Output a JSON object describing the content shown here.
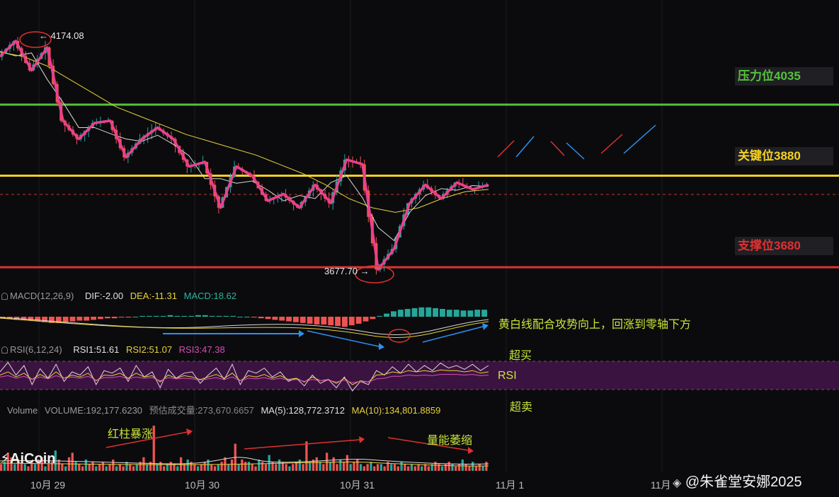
{
  "chart_data": {
    "type": "candlestick",
    "x_ticks": [
      "10月 29",
      "10月 30",
      "10月 31",
      "11月 1",
      "11月"
    ],
    "price_labels": {
      "high": "4174.08",
      "low": "3677.70"
    },
    "levels": [
      {
        "label": "压力位4035",
        "value": 4035,
        "color": "#56c23a"
      },
      {
        "label": "关键位3880",
        "value": 3880,
        "color": "#f5d320"
      },
      {
        "label": "支撑位3680",
        "value": 3680,
        "color": "#e03131"
      }
    ],
    "price_zigzag": [
      4140,
      4174,
      4110,
      4160,
      4000,
      3960,
      3995,
      4000,
      3920,
      3960,
      3985,
      3960,
      3900,
      3910,
      3810,
      3900,
      3880,
      3825,
      3840,
      3810,
      3860,
      3820,
      3915,
      3905,
      3675,
      3720,
      3820,
      3860,
      3830,
      3865,
      3850,
      3860
    ],
    "ma_slow": [
      4150,
      4140,
      4120,
      4090,
      4060,
      4030,
      4010,
      3990,
      3970,
      3955,
      3940,
      3925,
      3905,
      3885,
      3860,
      3830,
      3810,
      3800,
      3810,
      3830,
      3845,
      3850
    ],
    "macd": {
      "header": {
        "name": "MACD(12,26,9)",
        "dif": "DIF:-2.00",
        "dea": "DEA:-11.31",
        "macd": "MACD:18.62"
      },
      "histogram": [
        -2,
        -3,
        -4,
        -4,
        -5,
        -6,
        -7,
        -8,
        -8,
        -7,
        -6,
        -5,
        -5,
        -4,
        -3,
        -2,
        -2,
        -1,
        -1,
        0,
        1,
        1,
        1,
        1,
        2,
        1,
        1,
        1,
        2,
        2,
        1,
        1,
        1,
        1,
        0,
        0,
        -1,
        -2,
        -3,
        -4,
        -5,
        -6,
        -7,
        -8,
        -9,
        -10,
        -10,
        -11,
        -12,
        -13,
        -11,
        -9,
        -6,
        -3,
        1,
        4,
        7,
        9,
        10,
        11,
        12,
        12,
        11,
        10,
        9,
        9,
        8,
        8,
        9,
        9
      ]
    },
    "rsi": {
      "header": {
        "name": "RSI(6,12,24)",
        "rsi1": "RSI1:51.61",
        "rsi2": "RSI2:51.07",
        "rsi3": "RSI3:47.38"
      },
      "label": "RSI",
      "overbought": "超买",
      "oversold": "超卖",
      "rsi6": [
        60,
        75,
        55,
        70,
        40,
        65,
        50,
        72,
        45,
        60,
        55,
        68,
        40,
        62,
        58,
        66,
        45,
        70,
        52,
        60,
        35,
        64,
        50,
        58,
        60,
        42,
        55,
        66,
        48,
        72,
        40,
        62,
        58,
        66,
        52,
        60,
        45,
        50,
        38,
        55,
        42,
        48,
        35,
        52,
        30,
        45,
        40,
        62,
        55,
        68,
        58,
        72,
        60,
        70,
        62,
        74,
        66,
        70,
        64,
        72,
        62,
        70
      ],
      "rsi12": [
        55,
        60,
        52,
        58,
        48,
        56,
        50,
        60,
        50,
        55,
        52,
        58,
        46,
        55,
        54,
        58,
        50,
        58,
        52,
        54,
        44,
        55,
        50,
        54,
        52,
        48,
        52,
        56,
        50,
        58,
        46,
        54,
        52,
        56,
        50,
        54,
        48,
        50,
        44,
        52,
        46,
        48,
        42,
        50,
        40,
        46,
        44,
        55,
        56,
        60,
        58,
        62,
        60,
        62,
        60,
        63,
        62,
        62,
        60,
        62,
        58,
        60
      ],
      "rsi24": [
        52,
        54,
        50,
        53,
        48,
        52,
        49,
        54,
        50,
        52,
        50,
        53,
        47,
        51,
        51,
        53,
        49,
        52,
        50,
        51,
        46,
        51,
        49,
        50,
        49,
        47,
        49,
        51,
        48,
        52,
        46,
        50,
        49,
        51,
        48,
        50,
        47,
        48,
        45,
        48,
        46,
        47,
        44,
        47,
        43,
        45,
        44,
        49,
        50,
        53,
        53,
        55,
        54,
        55,
        54,
        56,
        56,
        56,
        55,
        56,
        54,
        55
      ]
    },
    "volume": {
      "header": {
        "name": "Volume",
        "vol": "VOLUME:192,177.6230",
        "est": "预估成交量:273,670.6657",
        "ma5": "MA(5):128,772.3712",
        "ma10": "MA(10):134,801.8859"
      },
      "bars": [
        3,
        4,
        8,
        6,
        3,
        5,
        4,
        3,
        2,
        4,
        3,
        5,
        6,
        2,
        3,
        4,
        9,
        5,
        3,
        2,
        6,
        8,
        4,
        3,
        2,
        5,
        3,
        4,
        2,
        3,
        4,
        2,
        3,
        5,
        2,
        3,
        2,
        4,
        3,
        2,
        3,
        4,
        6,
        3,
        4,
        20,
        3,
        4,
        2,
        3,
        4,
        3,
        2,
        6,
        3,
        5,
        4,
        3,
        2,
        3,
        4,
        5,
        3,
        2,
        3,
        4,
        6,
        3,
        5,
        12,
        3,
        5,
        4,
        4,
        3,
        2,
        5,
        4,
        3,
        7,
        4,
        3,
        5,
        4,
        3,
        2,
        3,
        4,
        5,
        3,
        13,
        4,
        5,
        6,
        4,
        3,
        8,
        4,
        6,
        3,
        5,
        4,
        7,
        3,
        4,
        5,
        3,
        2,
        3,
        4,
        2,
        3,
        3,
        2,
        4,
        3,
        3,
        2,
        4,
        3,
        2,
        3,
        2,
        3,
        2,
        3,
        2,
        3,
        4,
        3,
        2,
        3,
        4,
        3,
        2,
        3,
        5,
        3,
        2,
        4,
        2,
        3,
        2,
        4
      ]
    }
  },
  "annotations": {
    "macd_note": "黄白线配合攻势向上，回涨到零轴下方",
    "red_bars": "红柱暴涨",
    "volume_shrink": "量能萎缩"
  },
  "brand": {
    "logo": "AiCoin",
    "watermark": "@朱雀堂安娜2025"
  },
  "colors": {
    "up": "#26a69a",
    "down": "#ef5350",
    "zigzag": "#ea3f8f",
    "ma_white": "#d9d9d9",
    "ma_yellow": "#e7d23a",
    "rsi_band": "#3b1340"
  }
}
